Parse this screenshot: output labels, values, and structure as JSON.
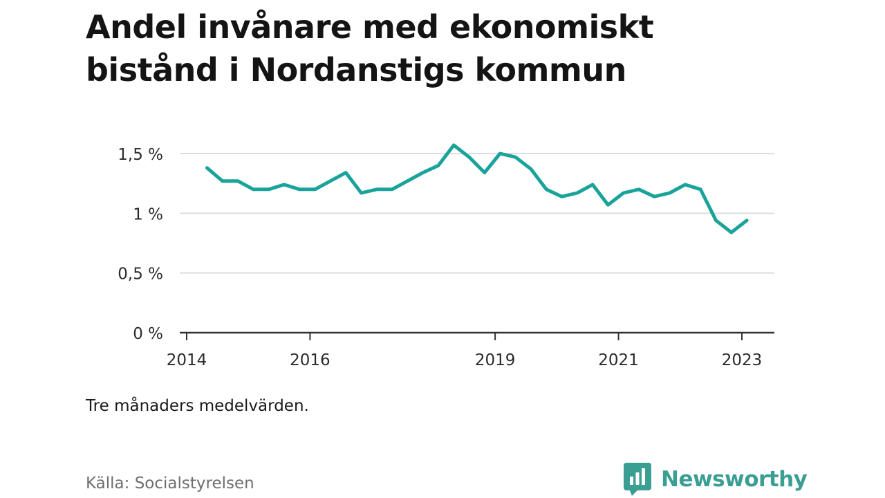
{
  "title": "Andel invånare med ekonomiskt bistånd i Nordanstigs kommun",
  "note": "Tre månaders medelvärden.",
  "source": "Källa: Socialstyrelsen",
  "brand": "Newsworthy",
  "colors": {
    "line": "#1aa39a",
    "grid": "#dddddd",
    "axis": "#333333",
    "brand": "#3a9e92"
  },
  "chart_data": {
    "type": "line",
    "title": "Andel invånare med ekonomiskt bistånd i Nordanstigs kommun",
    "xlabel": "",
    "ylabel": "",
    "y_ticks": [
      0,
      0.5,
      1,
      1.5
    ],
    "y_tick_labels": [
      "0 %",
      "0,5 %",
      "1 %",
      "1,5 %"
    ],
    "ylim": [
      0,
      1.6
    ],
    "x_ticks": [
      2014,
      2016,
      2019,
      2021,
      2023
    ],
    "x_tick_labels": [
      "2014",
      "2016",
      "2019",
      "2021",
      "2023"
    ],
    "xlim": [
      2014,
      2023.3
    ],
    "grid": true,
    "series": [
      {
        "name": "",
        "x": [
          2014.33,
          2014.58,
          2014.83,
          2015.08,
          2015.33,
          2015.58,
          2015.83,
          2016.08,
          2016.33,
          2016.58,
          2016.83,
          2017.08,
          2017.33,
          2017.58,
          2017.83,
          2018.08,
          2018.33,
          2018.58,
          2018.83,
          2019.08,
          2019.33,
          2019.58,
          2019.83,
          2020.08,
          2020.33,
          2020.58,
          2020.83,
          2021.08,
          2021.33,
          2021.58,
          2021.83,
          2022.08,
          2022.33,
          2022.58,
          2022.83,
          2023.08
        ],
        "values": [
          1.38,
          1.27,
          1.27,
          1.2,
          1.2,
          1.24,
          1.2,
          1.2,
          1.27,
          1.34,
          1.17,
          1.2,
          1.2,
          1.27,
          1.34,
          1.4,
          1.57,
          1.47,
          1.34,
          1.5,
          1.47,
          1.37,
          1.2,
          1.14,
          1.17,
          1.24,
          1.07,
          1.17,
          1.2,
          1.14,
          1.17,
          1.24,
          1.2,
          0.94,
          0.84,
          0.94
        ]
      }
    ]
  }
}
